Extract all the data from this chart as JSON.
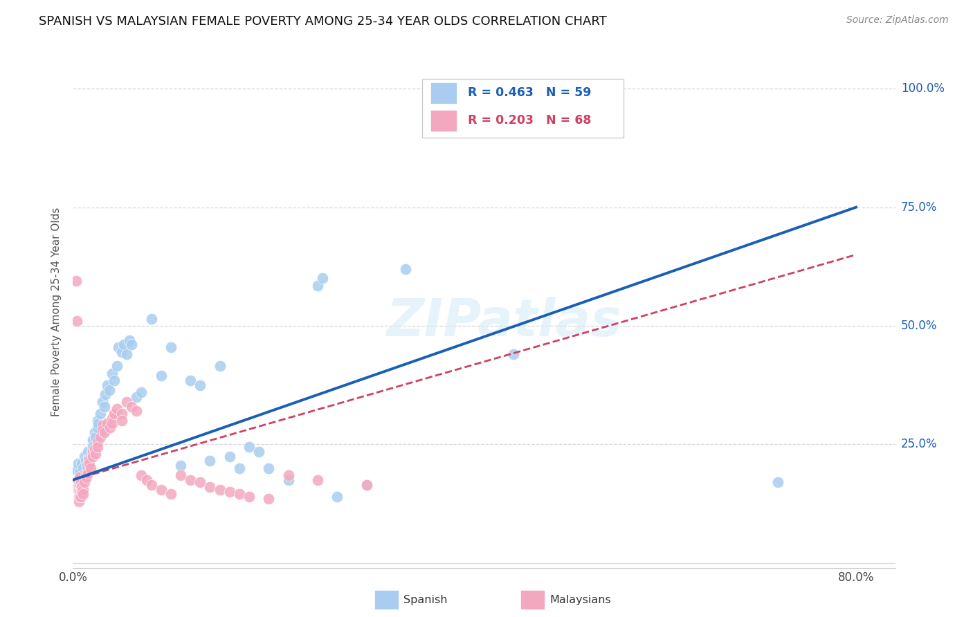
{
  "title": "SPANISH VS MALAYSIAN FEMALE POVERTY AMONG 25-34 YEAR OLDS CORRELATION CHART",
  "source": "Source: ZipAtlas.com",
  "ylabel": "Female Poverty Among 25-34 Year Olds",
  "xlim": [
    0.0,
    0.84
  ],
  "ylim": [
    -0.01,
    1.07
  ],
  "ytick_positions": [
    0.0,
    0.25,
    0.5,
    0.75,
    1.0
  ],
  "ytick_labels": [
    "",
    "25.0%",
    "50.0%",
    "75.0%",
    "100.0%"
  ],
  "xtick_positions": [
    0.0,
    0.2,
    0.4,
    0.6,
    0.8
  ],
  "xtick_labels": [
    "0.0%",
    "",
    "",
    "",
    "80.0%"
  ],
  "grid_color": "#cccccc",
  "spanish_color": "#a8cdf0",
  "malaysian_color": "#f4a8c0",
  "trendline_spanish_color": "#1a5fb4",
  "trendline_malaysian_color": "#d04060",
  "spanish_points": [
    [
      0.004,
      0.195
    ],
    [
      0.005,
      0.21
    ],
    [
      0.006,
      0.175
    ],
    [
      0.007,
      0.19
    ],
    [
      0.008,
      0.18
    ],
    [
      0.009,
      0.21
    ],
    [
      0.01,
      0.2
    ],
    [
      0.01,
      0.185
    ],
    [
      0.012,
      0.225
    ],
    [
      0.013,
      0.215
    ],
    [
      0.014,
      0.205
    ],
    [
      0.015,
      0.235
    ],
    [
      0.016,
      0.22
    ],
    [
      0.017,
      0.21
    ],
    [
      0.018,
      0.225
    ],
    [
      0.02,
      0.26
    ],
    [
      0.02,
      0.245
    ],
    [
      0.022,
      0.275
    ],
    [
      0.023,
      0.265
    ],
    [
      0.025,
      0.3
    ],
    [
      0.025,
      0.285
    ],
    [
      0.026,
      0.295
    ],
    [
      0.028,
      0.315
    ],
    [
      0.03,
      0.34
    ],
    [
      0.032,
      0.33
    ],
    [
      0.033,
      0.355
    ],
    [
      0.035,
      0.375
    ],
    [
      0.037,
      0.365
    ],
    [
      0.04,
      0.4
    ],
    [
      0.042,
      0.385
    ],
    [
      0.045,
      0.415
    ],
    [
      0.046,
      0.455
    ],
    [
      0.05,
      0.445
    ],
    [
      0.052,
      0.46
    ],
    [
      0.055,
      0.44
    ],
    [
      0.058,
      0.47
    ],
    [
      0.06,
      0.46
    ],
    [
      0.065,
      0.35
    ],
    [
      0.07,
      0.36
    ],
    [
      0.08,
      0.515
    ],
    [
      0.09,
      0.395
    ],
    [
      0.1,
      0.455
    ],
    [
      0.11,
      0.205
    ],
    [
      0.12,
      0.385
    ],
    [
      0.13,
      0.375
    ],
    [
      0.14,
      0.215
    ],
    [
      0.15,
      0.415
    ],
    [
      0.16,
      0.225
    ],
    [
      0.17,
      0.2
    ],
    [
      0.18,
      0.245
    ],
    [
      0.19,
      0.235
    ],
    [
      0.2,
      0.2
    ],
    [
      0.22,
      0.175
    ],
    [
      0.25,
      0.585
    ],
    [
      0.255,
      0.6
    ],
    [
      0.27,
      0.14
    ],
    [
      0.3,
      0.165
    ],
    [
      0.34,
      0.62
    ],
    [
      0.45,
      0.44
    ],
    [
      0.72,
      0.17
    ]
  ],
  "malaysian_points": [
    [
      0.003,
      0.595
    ],
    [
      0.004,
      0.51
    ],
    [
      0.005,
      0.175
    ],
    [
      0.005,
      0.165
    ],
    [
      0.005,
      0.155
    ],
    [
      0.006,
      0.17
    ],
    [
      0.006,
      0.16
    ],
    [
      0.006,
      0.15
    ],
    [
      0.006,
      0.14
    ],
    [
      0.006,
      0.13
    ],
    [
      0.007,
      0.18
    ],
    [
      0.007,
      0.165
    ],
    [
      0.007,
      0.15
    ],
    [
      0.007,
      0.14
    ],
    [
      0.008,
      0.17
    ],
    [
      0.008,
      0.16
    ],
    [
      0.008,
      0.15
    ],
    [
      0.008,
      0.14
    ],
    [
      0.009,
      0.16
    ],
    [
      0.009,
      0.15
    ],
    [
      0.01,
      0.155
    ],
    [
      0.01,
      0.145
    ],
    [
      0.012,
      0.17
    ],
    [
      0.013,
      0.185
    ],
    [
      0.014,
      0.18
    ],
    [
      0.015,
      0.2
    ],
    [
      0.015,
      0.19
    ],
    [
      0.016,
      0.215
    ],
    [
      0.017,
      0.21
    ],
    [
      0.018,
      0.2
    ],
    [
      0.02,
      0.235
    ],
    [
      0.02,
      0.225
    ],
    [
      0.022,
      0.24
    ],
    [
      0.023,
      0.23
    ],
    [
      0.025,
      0.255
    ],
    [
      0.025,
      0.245
    ],
    [
      0.028,
      0.265
    ],
    [
      0.03,
      0.29
    ],
    [
      0.03,
      0.28
    ],
    [
      0.032,
      0.275
    ],
    [
      0.035,
      0.295
    ],
    [
      0.038,
      0.285
    ],
    [
      0.04,
      0.305
    ],
    [
      0.04,
      0.295
    ],
    [
      0.042,
      0.315
    ],
    [
      0.045,
      0.325
    ],
    [
      0.05,
      0.315
    ],
    [
      0.05,
      0.3
    ],
    [
      0.055,
      0.34
    ],
    [
      0.06,
      0.33
    ],
    [
      0.065,
      0.32
    ],
    [
      0.07,
      0.185
    ],
    [
      0.075,
      0.175
    ],
    [
      0.08,
      0.165
    ],
    [
      0.09,
      0.155
    ],
    [
      0.1,
      0.145
    ],
    [
      0.11,
      0.185
    ],
    [
      0.12,
      0.175
    ],
    [
      0.13,
      0.17
    ],
    [
      0.14,
      0.16
    ],
    [
      0.15,
      0.155
    ],
    [
      0.16,
      0.15
    ],
    [
      0.17,
      0.145
    ],
    [
      0.18,
      0.14
    ],
    [
      0.2,
      0.135
    ],
    [
      0.22,
      0.185
    ],
    [
      0.25,
      0.175
    ],
    [
      0.3,
      0.165
    ]
  ]
}
